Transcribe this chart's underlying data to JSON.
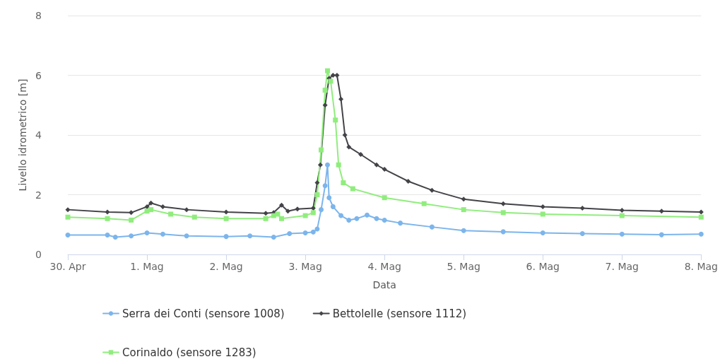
{
  "chart_data": {
    "type": "line",
    "xlabel": "Data",
    "ylabel": "Livello idrometrico [m]",
    "xlim": [
      0,
      8
    ],
    "xticks": [
      {
        "value": 0,
        "label": "30. Apr"
      },
      {
        "value": 1,
        "label": "1. Mag"
      },
      {
        "value": 2,
        "label": "2. Mag"
      },
      {
        "value": 3,
        "label": "3. Mag"
      },
      {
        "value": 4,
        "label": "4. Mag"
      },
      {
        "value": 5,
        "label": "5. Mag"
      },
      {
        "value": 6,
        "label": "6. Mag"
      },
      {
        "value": 7,
        "label": "7. Mag"
      },
      {
        "value": 8,
        "label": "8. Mag"
      }
    ],
    "ylim": [
      0,
      8
    ],
    "yticks": [
      0,
      2,
      4,
      6,
      8
    ],
    "grid": "y",
    "legend": "bottom",
    "line_style": "solid",
    "series": [
      {
        "name": "Serra dei Conti (sensore 1008)",
        "color": "#7cb5ec",
        "marker": "circle",
        "x": [
          0,
          0.5,
          0.6,
          0.8,
          1.0,
          1.2,
          1.5,
          2.0,
          2.3,
          2.6,
          2.8,
          3.0,
          3.1,
          3.15,
          3.2,
          3.25,
          3.28,
          3.3,
          3.35,
          3.45,
          3.55,
          3.65,
          3.78,
          3.9,
          4.0,
          4.2,
          4.6,
          5.0,
          5.5,
          6.0,
          6.5,
          7.0,
          7.5,
          8.0
        ],
        "values": [
          0.65,
          0.65,
          0.58,
          0.62,
          0.72,
          0.68,
          0.62,
          0.6,
          0.62,
          0.58,
          0.7,
          0.72,
          0.75,
          0.85,
          1.5,
          2.3,
          3.0,
          1.9,
          1.6,
          1.3,
          1.15,
          1.2,
          1.32,
          1.2,
          1.15,
          1.05,
          0.92,
          0.8,
          0.76,
          0.72,
          0.7,
          0.68,
          0.66,
          0.68
        ]
      },
      {
        "name": "Bettolelle (sensore 1112)",
        "color": "#434348",
        "marker": "diamond",
        "x": [
          0,
          0.5,
          0.8,
          1.0,
          1.05,
          1.2,
          1.5,
          2.0,
          2.5,
          2.6,
          2.7,
          2.78,
          2.9,
          3.1,
          3.15,
          3.19,
          3.25,
          3.3,
          3.35,
          3.4,
          3.45,
          3.5,
          3.55,
          3.7,
          3.9,
          4.0,
          4.3,
          4.6,
          5.0,
          5.5,
          6.0,
          6.5,
          7.0,
          7.5,
          8.0
        ],
        "values": [
          1.5,
          1.42,
          1.4,
          1.6,
          1.72,
          1.6,
          1.5,
          1.42,
          1.38,
          1.4,
          1.65,
          1.45,
          1.52,
          1.55,
          2.4,
          3.0,
          5.0,
          5.9,
          6.0,
          6.0,
          5.2,
          4.0,
          3.6,
          3.35,
          3.0,
          2.85,
          2.45,
          2.15,
          1.85,
          1.7,
          1.6,
          1.55,
          1.48,
          1.45,
          1.42
        ]
      },
      {
        "name": "Corinaldo (sensore 1283)",
        "color": "#90ed7d",
        "marker": "square",
        "x": [
          0,
          0.5,
          0.8,
          1.0,
          1.05,
          1.3,
          1.6,
          2.0,
          2.5,
          2.6,
          2.65,
          2.7,
          3.0,
          3.1,
          3.15,
          3.2,
          3.25,
          3.28,
          3.32,
          3.38,
          3.42,
          3.48,
          3.6,
          4.0,
          4.5,
          5.0,
          5.5,
          6.0,
          7.0,
          8.0
        ],
        "values": [
          1.25,
          1.2,
          1.15,
          1.45,
          1.5,
          1.35,
          1.25,
          1.2,
          1.2,
          1.3,
          1.35,
          1.2,
          1.3,
          1.4,
          2.0,
          3.5,
          5.5,
          6.15,
          5.8,
          4.5,
          3.0,
          2.4,
          2.2,
          1.9,
          1.7,
          1.5,
          1.4,
          1.35,
          1.3,
          1.25
        ]
      }
    ]
  }
}
